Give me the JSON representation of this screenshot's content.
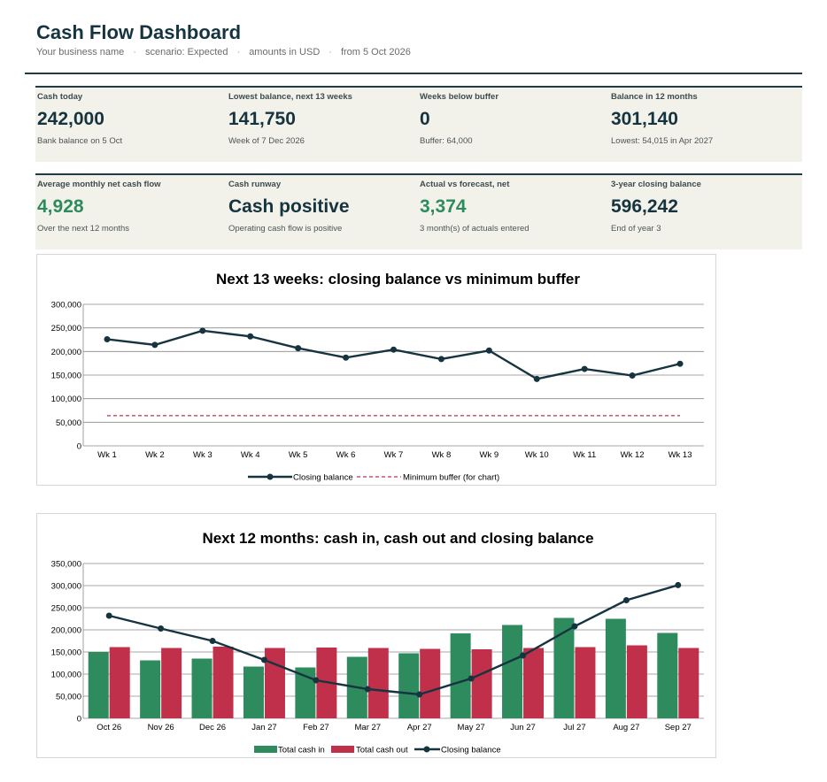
{
  "header": {
    "title": "Cash Flow Dashboard",
    "subtitle": [
      "Your business name",
      "scenario: Expected",
      "amounts in USD",
      "from 5 Oct 2026"
    ]
  },
  "kpis_row1": [
    {
      "label": "Cash today",
      "value": "242,000",
      "note": "Bank balance on 5 Oct"
    },
    {
      "label": "Lowest balance, next 13 weeks",
      "value": "141,750",
      "note": "Week of 7 Dec 2026"
    },
    {
      "label": "Weeks below buffer",
      "value": "0",
      "note": "Buffer: 64,000"
    },
    {
      "label": "Balance in 12 months",
      "value": "301,140",
      "note": "Lowest: 54,015 in Apr 2027"
    }
  ],
  "kpis_row2": [
    {
      "label": "Average monthly net cash flow",
      "value": "4,928",
      "note": "Over the next 12 months",
      "positive": true
    },
    {
      "label": "Cash runway",
      "value": "Cash positive",
      "note": "Operating cash flow is positive",
      "positive": false
    },
    {
      "label": "Actual vs forecast, net",
      "value": "3,374",
      "note": "3 month(s) of actuals entered",
      "positive": true
    },
    {
      "label": "3-year closing balance",
      "value": "596,242",
      "note": "End of year 3",
      "positive": false
    }
  ],
  "colors": {
    "dark": "#16343f",
    "green": "#2e8b5e",
    "red": "#c0304a",
    "panel": "#f2f2ea"
  },
  "chart_data": [
    {
      "type": "line",
      "title": "Next 13 weeks: closing balance vs minimum buffer",
      "categories": [
        "Wk 1",
        "Wk 2",
        "Wk 3",
        "Wk 4",
        "Wk 5",
        "Wk 6",
        "Wk 7",
        "Wk 8",
        "Wk 9",
        "Wk 10",
        "Wk 11",
        "Wk 12",
        "Wk 13"
      ],
      "series": [
        {
          "name": "Closing balance",
          "values": [
            226000,
            214000,
            244000,
            232000,
            207000,
            187000,
            204000,
            184000,
            202000,
            141750,
            163000,
            149000,
            174000
          ]
        },
        {
          "name": "Minimum buffer (for chart)",
          "values": [
            64000,
            64000,
            64000,
            64000,
            64000,
            64000,
            64000,
            64000,
            64000,
            64000,
            64000,
            64000,
            64000
          ]
        }
      ],
      "ylim": [
        0,
        300000
      ],
      "yticks": [
        "0",
        "50,000",
        "100,000",
        "150,000",
        "200,000",
        "250,000",
        "300,000"
      ],
      "legend": "bottom",
      "grid": true
    },
    {
      "type": "bar",
      "title": "Next 12 months: cash in, cash out and closing balance",
      "categories": [
        "Oct 26",
        "Nov 26",
        "Dec 26",
        "Jan 27",
        "Feb 27",
        "Mar 27",
        "Apr 27",
        "May 27",
        "Jun 27",
        "Jul 27",
        "Aug 27",
        "Sep 27"
      ],
      "series": [
        {
          "name": "Total cash in",
          "values": [
            150000,
            131000,
            135000,
            117000,
            115000,
            139000,
            147000,
            192000,
            211000,
            227000,
            225000,
            193000
          ]
        },
        {
          "name": "Total cash out",
          "values": [
            161000,
            159000,
            162000,
            159000,
            160000,
            159000,
            157000,
            156000,
            159000,
            161000,
            165000,
            159000
          ]
        },
        {
          "name": "Closing balance",
          "values": [
            232000,
            203000,
            175000,
            132000,
            86000,
            66000,
            54015,
            90000,
            142000,
            208000,
            267000,
            301140
          ]
        }
      ],
      "ylim": [
        0,
        350000
      ],
      "yticks": [
        "0",
        "50,000",
        "100,000",
        "150,000",
        "200,000",
        "250,000",
        "300,000",
        "350,000"
      ],
      "legend": "bottom",
      "grid": true
    }
  ]
}
